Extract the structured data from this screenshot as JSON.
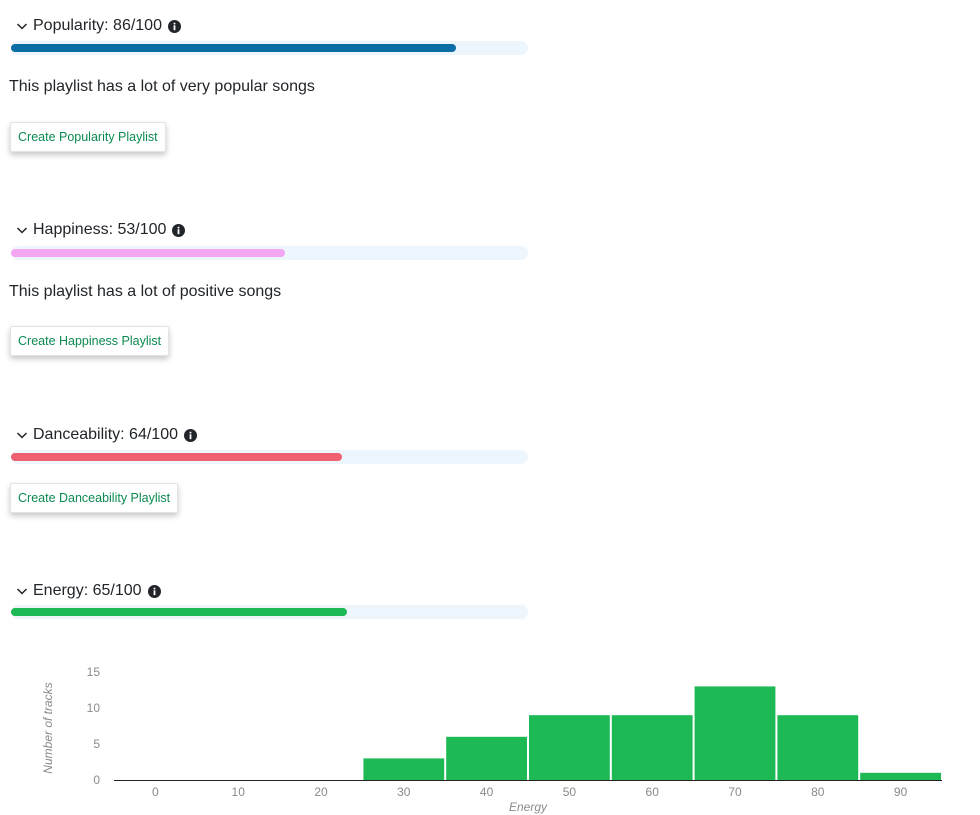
{
  "sections": [
    {
      "label": "Popularity: 86/100",
      "value": 86,
      "color": "#0c6ea5",
      "description": "This playlist has a lot of very popular songs",
      "button": "Create Popularity Playlist"
    },
    {
      "label": "Happiness: 53/100",
      "value": 53,
      "color": "#f3a6f2",
      "description": "This playlist has a lot of positive songs",
      "button": "Create Happiness Playlist"
    },
    {
      "label": "Danceability: 64/100",
      "value": 64,
      "color": "#ef6170",
      "button": "Create Danceability Playlist"
    },
    {
      "label": "Energy: 65/100",
      "value": 65,
      "color": "#1db954"
    }
  ],
  "icons": {
    "chevron": "chevron-down-icon",
    "info": "info-circle-icon"
  },
  "colors": {
    "track_bg": "#eef6fd",
    "button_text": "#0b8a50"
  },
  "chart_data": {
    "type": "bar",
    "categories": [
      "0",
      "10",
      "20",
      "30",
      "40",
      "50",
      "60",
      "70",
      "80",
      "90"
    ],
    "values": [
      0,
      0,
      0,
      3,
      6,
      9,
      9,
      13,
      9,
      1
    ],
    "xlabel": "Energy",
    "ylabel": "Number of tracks",
    "yticks": [
      0,
      5,
      10,
      15
    ],
    "ylim": [
      0,
      15
    ],
    "color": "#1db954",
    "grid": false
  }
}
